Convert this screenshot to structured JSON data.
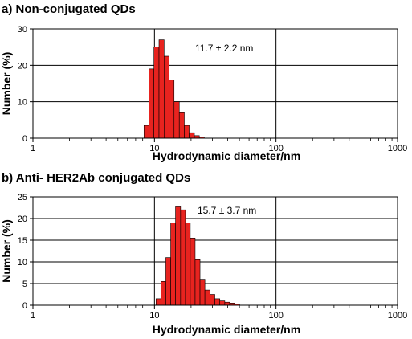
{
  "chart_data": [
    {
      "type": "bar",
      "title": "a) Non-conjugated QDs",
      "xlabel": "Hydrodynamic diameter/nm",
      "ylabel": "Number (%)",
      "x_scale": "log",
      "xlim": [
        1,
        1000
      ],
      "ylim": [
        0,
        30
      ],
      "x_ticks": [
        "1",
        "10",
        "100",
        "1000"
      ],
      "y_ticks": [
        "0",
        "10",
        "20",
        "30"
      ],
      "grid": true,
      "annotation": "11.7 ± 2.2 nm",
      "bar_color": "#e8231f",
      "bins": [
        {
          "x0": 8.2,
          "x1": 9.0,
          "value": 3.5
        },
        {
          "x0": 9.0,
          "x1": 9.9,
          "value": 19
        },
        {
          "x0": 9.9,
          "x1": 10.9,
          "value": 25
        },
        {
          "x0": 10.9,
          "x1": 12.0,
          "value": 27
        },
        {
          "x0": 12.0,
          "x1": 13.2,
          "value": 22.5
        },
        {
          "x0": 13.2,
          "x1": 14.5,
          "value": 16
        },
        {
          "x0": 14.5,
          "x1": 16.0,
          "value": 10
        },
        {
          "x0": 16.0,
          "x1": 17.6,
          "value": 7
        },
        {
          "x0": 17.6,
          "x1": 19.3,
          "value": 3.5
        },
        {
          "x0": 19.3,
          "x1": 21.3,
          "value": 1.5
        },
        {
          "x0": 21.3,
          "x1": 23.4,
          "value": 0.7
        },
        {
          "x0": 23.4,
          "x1": 25.7,
          "value": 0.3
        }
      ]
    },
    {
      "type": "bar",
      "title": "b) Anti- HER2Ab conjugated QDs",
      "xlabel": "Hydrodynamic diameter/nm",
      "ylabel": "Number (%)",
      "x_scale": "log",
      "xlim": [
        1,
        1000
      ],
      "ylim": [
        0,
        25
      ],
      "x_ticks": [
        "1",
        "10",
        "100",
        "1000"
      ],
      "y_ticks": [
        "0",
        "5",
        "10",
        "15",
        "20",
        "25"
      ],
      "grid": true,
      "annotation": "15.7 ± 3.7 nm",
      "bar_color": "#e8231f",
      "bins": [
        {
          "x0": 10.3,
          "x1": 11.3,
          "value": 1.5
        },
        {
          "x0": 11.3,
          "x1": 12.4,
          "value": 5.5
        },
        {
          "x0": 12.4,
          "x1": 13.6,
          "value": 11
        },
        {
          "x0": 13.6,
          "x1": 14.9,
          "value": 19
        },
        {
          "x0": 14.9,
          "x1": 16.4,
          "value": 22.7
        },
        {
          "x0": 16.4,
          "x1": 18.0,
          "value": 22
        },
        {
          "x0": 18.0,
          "x1": 19.7,
          "value": 19
        },
        {
          "x0": 19.7,
          "x1": 21.6,
          "value": 15.5
        },
        {
          "x0": 21.6,
          "x1": 23.7,
          "value": 10.5
        },
        {
          "x0": 23.7,
          "x1": 26.0,
          "value": 6
        },
        {
          "x0": 26.0,
          "x1": 28.6,
          "value": 3.5
        },
        {
          "x0": 28.6,
          "x1": 31.4,
          "value": 2.5
        },
        {
          "x0": 31.4,
          "x1": 34.5,
          "value": 1.5
        },
        {
          "x0": 34.5,
          "x1": 37.9,
          "value": 1.0
        },
        {
          "x0": 37.9,
          "x1": 41.6,
          "value": 0.7
        },
        {
          "x0": 41.6,
          "x1": 45.7,
          "value": 0.5
        },
        {
          "x0": 45.7,
          "x1": 50.2,
          "value": 0.3
        }
      ]
    }
  ]
}
